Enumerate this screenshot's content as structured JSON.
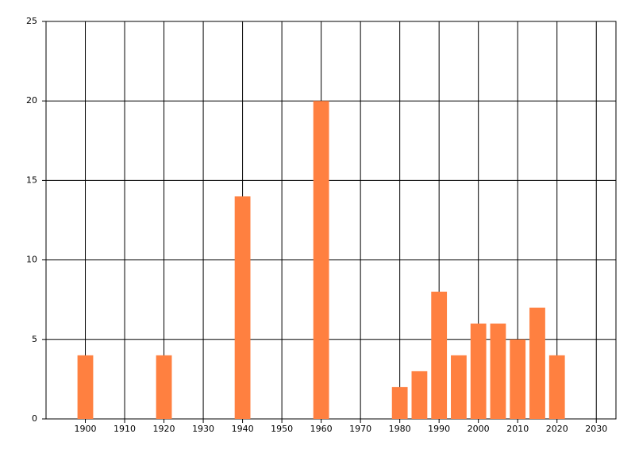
{
  "chart_data": {
    "type": "bar",
    "x": [
      1900,
      1920,
      1940,
      1960,
      1980,
      1985,
      1990,
      1995,
      2000,
      2005,
      2010,
      2015,
      2020
    ],
    "values": [
      4,
      4,
      14,
      20,
      2,
      3,
      8,
      4,
      6,
      6,
      5,
      7,
      4
    ],
    "color": "#ff8040",
    "xlim": [
      1890,
      2035
    ],
    "xticks": [
      1900,
      1910,
      1920,
      1930,
      1940,
      1950,
      1960,
      1970,
      1980,
      1990,
      2000,
      2010,
      2020,
      2030
    ],
    "ylim": [
      0,
      25
    ],
    "yticks": [
      0,
      5,
      10,
      15,
      20,
      25
    ],
    "grid": true
  }
}
